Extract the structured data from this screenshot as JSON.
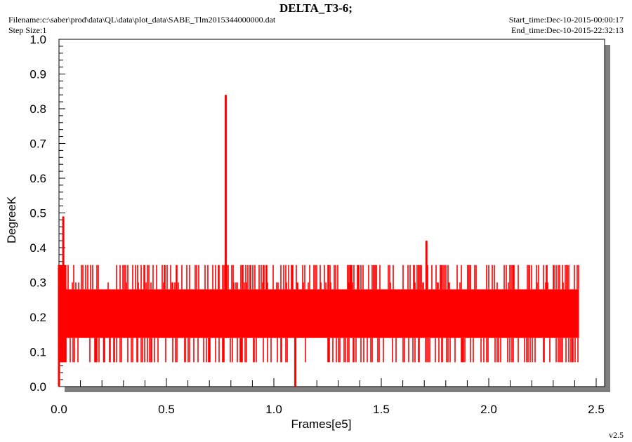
{
  "header": {
    "title": "DELTA_T3-6;",
    "filename": "Filename:c:\\saber\\prod\\data\\QL\\data\\plot_data\\SABE_Tlm2015344000000.dat",
    "step_size": "Step Size:1",
    "start_time": "Start_time:Dec-10-2015-00:00:17",
    "end_time": "End_time:Dec-10-2015-22:32:13",
    "version": "v2.5"
  },
  "colors": {
    "series": "#ff0000",
    "shadow": "#7f7f7f",
    "plot_bg": "#ffffff"
  },
  "chart_data": {
    "type": "line",
    "title": "DELTA_T3-6;",
    "xlabel": "Frames[e5]",
    "ylabel": "DegreeK",
    "xlim": [
      0,
      2.5
    ],
    "ylim": [
      0,
      1.0
    ],
    "x_ticks": [
      "0.0",
      "0.5",
      "1.0",
      "1.5",
      "2.0",
      "2.5"
    ],
    "y_ticks": [
      "0.0",
      "0.1",
      "0.2",
      "0.3",
      "0.4",
      "0.5",
      "0.6",
      "0.7",
      "0.8",
      "0.9",
      "1.0"
    ],
    "grid": false,
    "series": [
      {
        "color": "#ff0000",
        "x_range": [
          0,
          2.42
        ],
        "band_low": 0.14,
        "band_high": 0.28,
        "levels": [
          0.07,
          0.14,
          0.21,
          0.28,
          0.35
        ],
        "typical_min": 0.07,
        "typical_max": 0.35,
        "spikes": [
          {
            "x": 0.0,
            "low": 0.0,
            "high": 0.35
          },
          {
            "x": 0.02,
            "low": 0.07,
            "high": 0.49
          },
          {
            "x": 0.776,
            "low": 0.14,
            "high": 0.84
          },
          {
            "x": 1.71,
            "low": 0.28,
            "high": 0.42
          },
          {
            "x": 1.1,
            "low": 0.0,
            "high": 0.21
          },
          {
            "x": 0.21,
            "low": 0.07,
            "high": 0.21
          },
          {
            "x": 0.68,
            "low": 0.14,
            "high": 0.21
          }
        ]
      }
    ]
  }
}
